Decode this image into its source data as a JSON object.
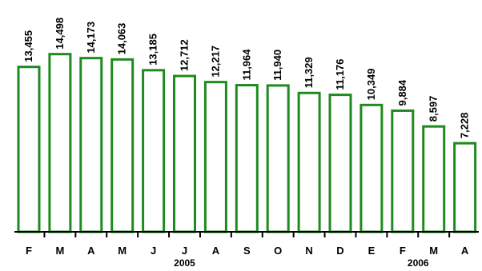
{
  "chart_data": {
    "type": "bar",
    "categories": [
      "F",
      "M",
      "A",
      "M",
      "J",
      "J",
      "A",
      "S",
      "O",
      "N",
      "D",
      "E",
      "F",
      "M",
      "A"
    ],
    "values": [
      13455,
      14498,
      14173,
      14063,
      13185,
      12712,
      12217,
      11964,
      11940,
      11329,
      11176,
      10349,
      9884,
      8597,
      7228
    ],
    "value_labels": [
      "13,455",
      "14,498",
      "14,173",
      "14,063",
      "13,185",
      "12,712",
      "12,217",
      "11,964",
      "11,940",
      "11,329",
      "11,176",
      "10,349",
      "9,884",
      "8,597",
      "7,228"
    ],
    "group_labels": [
      {
        "label": "2005",
        "from_index": 0,
        "to_index": 10
      },
      {
        "label": "2006",
        "from_index": 11,
        "to_index": 14
      }
    ],
    "ylim": [
      0,
      15000
    ],
    "grid": false,
    "colors": {
      "bar_stroke": "#1f8a1f",
      "bar_fill": "#ffffff"
    }
  }
}
